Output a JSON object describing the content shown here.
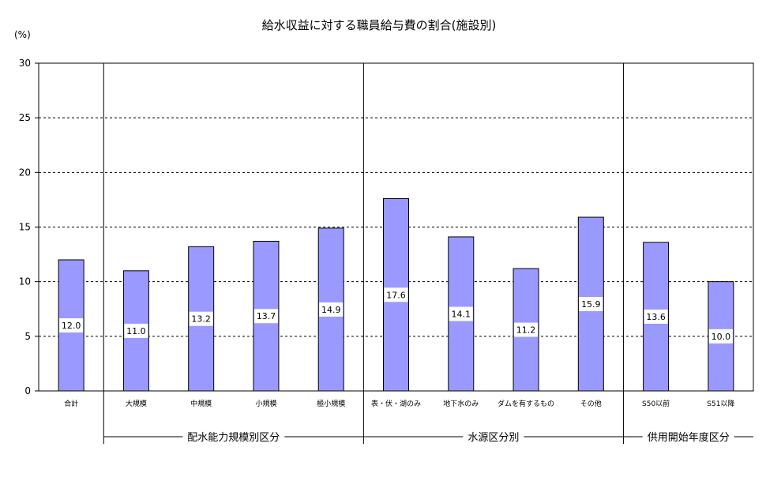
{
  "chart_data": {
    "type": "bar",
    "title": "給水収益に対する職員給与費の割合(施設別)",
    "unit_label": "(%)",
    "ylim": [
      0,
      30
    ],
    "yticks": [
      0,
      5,
      10,
      15,
      20,
      25,
      30
    ],
    "grid": true,
    "categories": [
      "合計",
      "大規模",
      "中規模",
      "小規模",
      "極小規模",
      "表・伏・湖のみ",
      "地下水のみ",
      "ダムを有するもの",
      "その他",
      "S50以前",
      "S51以降"
    ],
    "values": [
      12.0,
      11.0,
      13.2,
      13.7,
      14.9,
      17.6,
      14.1,
      11.2,
      15.9,
      13.6,
      10.0
    ],
    "data_labels": [
      "12.0",
      "11.0",
      "13.2",
      "13.7",
      "14.9",
      "17.6",
      "14.1",
      "11.2",
      "15.9",
      "13.6",
      "10.0"
    ],
    "groups": [
      {
        "label": "配水能力規模別区分",
        "start": 1,
        "end": 4
      },
      {
        "label": "水源区分別",
        "start": 5,
        "end": 8
      },
      {
        "label": "供用開始年度区分",
        "start": 9,
        "end": 10
      }
    ],
    "bar_color": "#9999ff"
  }
}
